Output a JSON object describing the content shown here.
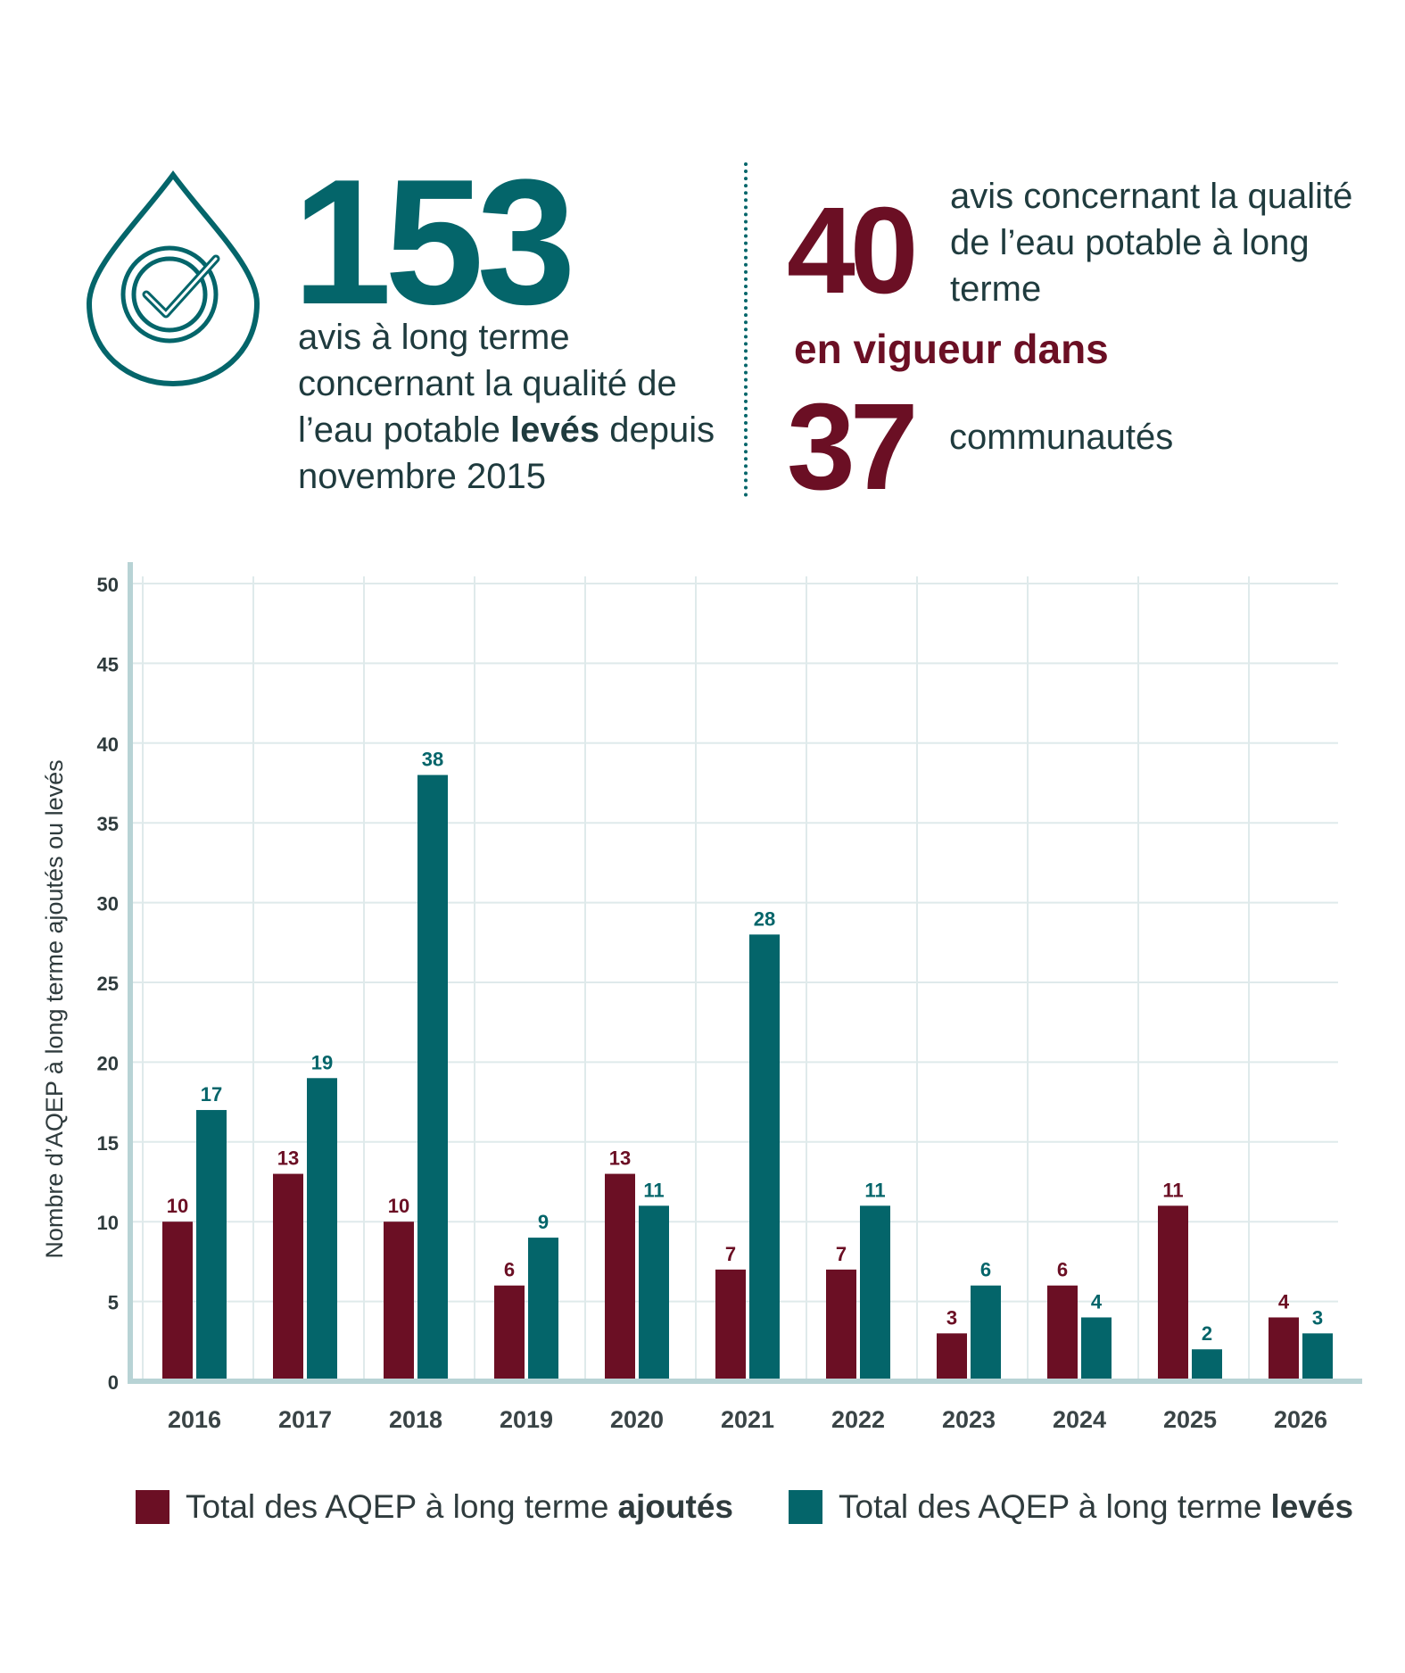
{
  "summary": {
    "lifted_total": "153",
    "lifted_text_pre": "avis à long terme concernant la qualité de l’eau potable",
    "lifted_text_bold": "levés",
    "lifted_text_post": "depuis novembre 2015",
    "active_total": "40",
    "active_text": "avis concernant la qualité de l’eau potable à long terme",
    "active_connector": "en vigueur dans",
    "communities_total": "37",
    "communities_text": "communautés"
  },
  "legend": {
    "added_label_pre": "Total des AQEP à long terme",
    "added_label_bold": "ajoutés",
    "lifted_label_pre": "Total des AQEP à long terme",
    "lifted_label_bold": "levés"
  },
  "colors": {
    "added": "#6b0f24",
    "lifted": "#04656a",
    "axis": "#b8d3d5",
    "grid": "#dfeaeb"
  },
  "chart_data": {
    "type": "bar",
    "title": "",
    "xlabel": "",
    "ylabel": "Nombre d’AQEP à long terme ajoutés ou levés",
    "categories": [
      "2016",
      "2017",
      "2018",
      "2019",
      "2020",
      "2021",
      "2022",
      "2023",
      "2024",
      "2025",
      "2026"
    ],
    "series": [
      {
        "name": "Total des AQEP à long terme ajoutés",
        "values": [
          10,
          13,
          10,
          6,
          13,
          7,
          7,
          3,
          6,
          11,
          4
        ]
      },
      {
        "name": "Total des AQEP à long terme levés",
        "values": [
          17,
          19,
          38,
          9,
          11,
          28,
          11,
          6,
          4,
          2,
          3
        ]
      }
    ],
    "ylim": [
      0,
      50
    ],
    "yticks": [
      0,
      5,
      10,
      15,
      20,
      25,
      30,
      35,
      40,
      45,
      50
    ],
    "grid": true,
    "legend_position": "bottom"
  }
}
